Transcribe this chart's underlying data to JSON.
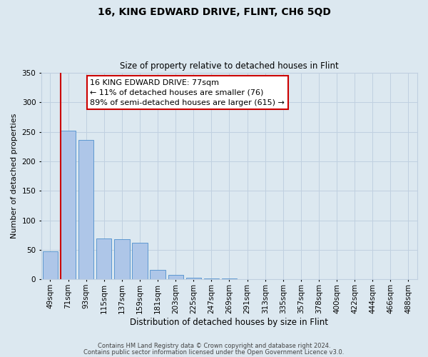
{
  "title1": "16, KING EDWARD DRIVE, FLINT, CH6 5QD",
  "title2": "Size of property relative to detached houses in Flint",
  "xlabel": "Distribution of detached houses by size in Flint",
  "ylabel": "Number of detached properties",
  "bar_labels": [
    "49sqm",
    "71sqm",
    "93sqm",
    "115sqm",
    "137sqm",
    "159sqm",
    "181sqm",
    "203sqm",
    "225sqm",
    "247sqm",
    "269sqm",
    "291sqm",
    "313sqm",
    "335sqm",
    "357sqm",
    "378sqm",
    "400sqm",
    "422sqm",
    "444sqm",
    "466sqm",
    "488sqm"
  ],
  "bar_heights": [
    48,
    252,
    236,
    69,
    68,
    62,
    16,
    7,
    3,
    1,
    1,
    0,
    0,
    0,
    0,
    0,
    0,
    0,
    0,
    0,
    0
  ],
  "bar_color": "#aec6e8",
  "bar_edge_color": "#4d8fcc",
  "vline_color": "#cc0000",
  "annotation_text": "16 KING EDWARD DRIVE: 77sqm\n← 11% of detached houses are smaller (76)\n89% of semi-detached houses are larger (615) →",
  "annotation_box_color": "#ffffff",
  "annotation_box_edge_color": "#cc0000",
  "ylim": [
    0,
    350
  ],
  "yticks": [
    0,
    50,
    100,
    150,
    200,
    250,
    300,
    350
  ],
  "grid_color": "#c0d0e0",
  "bg_color": "#dce8f0",
  "footer1": "Contains HM Land Registry data © Crown copyright and database right 2024.",
  "footer2": "Contains public sector information licensed under the Open Government Licence v3.0."
}
